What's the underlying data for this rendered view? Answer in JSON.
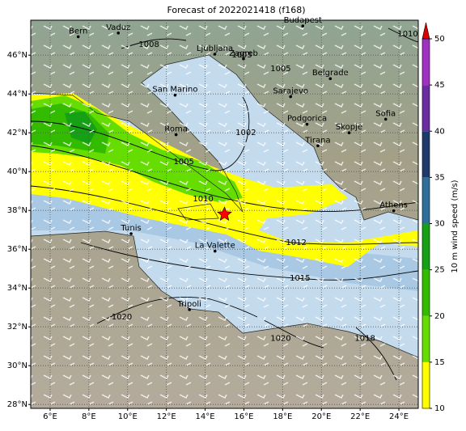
{
  "title": "Forecast of 2022021418 (f168)",
  "map": {
    "lon_range": [
      5,
      25
    ],
    "lat_range": [
      27.8,
      47.8
    ],
    "grid": true,
    "xticks": [
      {
        "value": 6,
        "label": "6°E"
      },
      {
        "value": 8,
        "label": "8°E"
      },
      {
        "value": 10,
        "label": "10°E"
      },
      {
        "value": 12,
        "label": "12°E"
      },
      {
        "value": 14,
        "label": "14°E"
      },
      {
        "value": 16,
        "label": "16°E"
      },
      {
        "value": 18,
        "label": "18°E"
      },
      {
        "value": 20,
        "label": "20°E"
      },
      {
        "value": 22,
        "label": "22°E"
      },
      {
        "value": 24,
        "label": "24°E"
      }
    ],
    "yticks": [
      {
        "value": 28,
        "label": "28°N"
      },
      {
        "value": 30,
        "label": "30°N"
      },
      {
        "value": 32,
        "label": "32°N"
      },
      {
        "value": 34,
        "label": "34°N"
      },
      {
        "value": 36,
        "label": "36°N"
      },
      {
        "value": 38,
        "label": "38°N"
      },
      {
        "value": 40,
        "label": "40°N"
      },
      {
        "value": 42,
        "label": "42°N"
      },
      {
        "value": 44,
        "label": "44°N"
      },
      {
        "value": 46,
        "label": "46°N"
      }
    ],
    "cities": [
      {
        "name": "Bern",
        "lon": 7.45,
        "lat": 46.95
      },
      {
        "name": "Vaduz",
        "lon": 9.52,
        "lat": 47.14
      },
      {
        "name": "Budapest",
        "lon": 19.04,
        "lat": 47.5
      },
      {
        "name": "Ljubljana",
        "lon": 14.5,
        "lat": 46.05
      },
      {
        "name": "Zagreb",
        "lon": 15.98,
        "lat": 45.81
      },
      {
        "name": "San Marino",
        "lon": 12.45,
        "lat": 43.94
      },
      {
        "name": "Sarajevo",
        "lon": 18.41,
        "lat": 43.86
      },
      {
        "name": "Belgrade",
        "lon": 20.46,
        "lat": 44.79
      },
      {
        "name": "Roma",
        "lon": 12.5,
        "lat": 41.9
      },
      {
        "name": "Podgorica",
        "lon": 19.26,
        "lat": 42.44
      },
      {
        "name": "Skopje",
        "lon": 21.43,
        "lat": 42.0
      },
      {
        "name": "Sofia",
        "lon": 23.32,
        "lat": 42.7
      },
      {
        "name": "Tirana",
        "lon": 19.82,
        "lat": 41.33
      },
      {
        "name": "Athens",
        "lon": 23.73,
        "lat": 37.98
      },
      {
        "name": "Tunis",
        "lon": 10.18,
        "lat": 36.8
      },
      {
        "name": "La Valette",
        "lon": 14.51,
        "lat": 35.9
      },
      {
        "name": "Tripoli",
        "lon": 13.19,
        "lat": 32.89
      }
    ],
    "isobar_labels": [
      {
        "label": 1010,
        "lon": 24.46,
        "lat": 47.1
      },
      {
        "label": 1008,
        "lon": 11.1,
        "lat": 46.55
      },
      {
        "label": 1005,
        "lon": 15.9,
        "lat": 46.0
      },
      {
        "label": 1005,
        "lon": 17.9,
        "lat": 45.3
      },
      {
        "label": 1002,
        "lon": 16.1,
        "lat": 42.0
      },
      {
        "label": 1005,
        "lon": 12.9,
        "lat": 40.5
      },
      {
        "label": 1010,
        "lon": 13.9,
        "lat": 38.6
      },
      {
        "label": 1012,
        "lon": 18.7,
        "lat": 36.35
      },
      {
        "label": 1015,
        "lon": 18.9,
        "lat": 34.5
      },
      {
        "label": 1020,
        "lon": 9.7,
        "lat": 32.5
      },
      {
        "label": 1020,
        "lon": 17.9,
        "lat": 31.4
      },
      {
        "label": 1018,
        "lon": 22.25,
        "lat": 31.4
      }
    ],
    "marker": {
      "lon": 15,
      "lat": 37.8,
      "color": "red"
    }
  },
  "colorbar": {
    "label": "10 m wind speed (m/s)",
    "levels": [
      10,
      15,
      20,
      25,
      30,
      35,
      40,
      45,
      50
    ],
    "colors": [
      "#ffff00",
      "#66dd00",
      "#33bb00",
      "#15a015",
      "#2e6e9a",
      "#1e3a6a",
      "#6a2ca0",
      "#a030c0"
    ],
    "extend_color": "#dd0000"
  }
}
